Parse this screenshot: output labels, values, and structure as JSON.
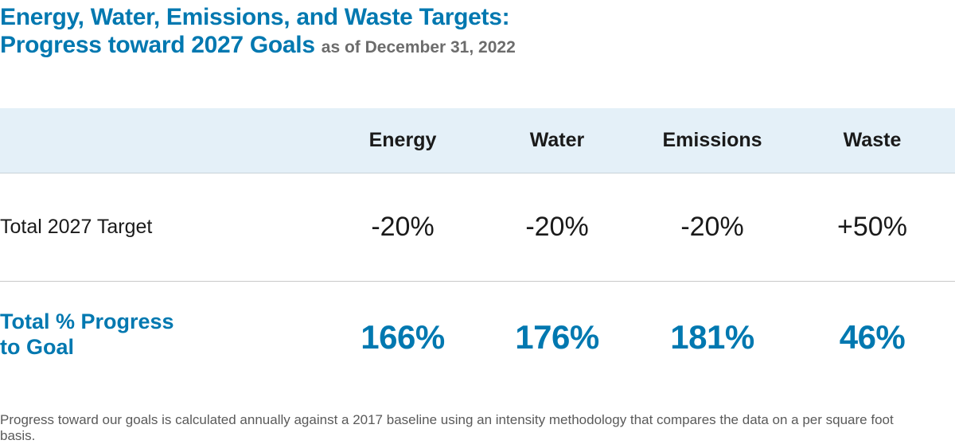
{
  "title": {
    "line1": "Energy, Water, Emissions, and Waste Targets:",
    "line2": "Progress toward 2027 Goals",
    "as_of": "as of December 31, 2022"
  },
  "table": {
    "columns": [
      "Energy",
      "Water",
      "Emissions",
      "Waste"
    ],
    "target_row": {
      "label": "Total 2027 Target",
      "values": [
        "-20%",
        "-20%",
        "-20%",
        "+50%"
      ]
    },
    "progress_row": {
      "label_line1": "Total % Progress",
      "label_line2": "to Goal",
      "values": [
        "166%",
        "176%",
        "181%",
        "46%"
      ]
    }
  },
  "footnote": "Progress toward our goals is calculated annually against a 2017 baseline using an intensity methodology that compares the data on a per square foot basis.",
  "colors": {
    "accent": "#0078b0",
    "header_bg": "#e4f0f8",
    "subtitle": "#6c6c6c"
  }
}
